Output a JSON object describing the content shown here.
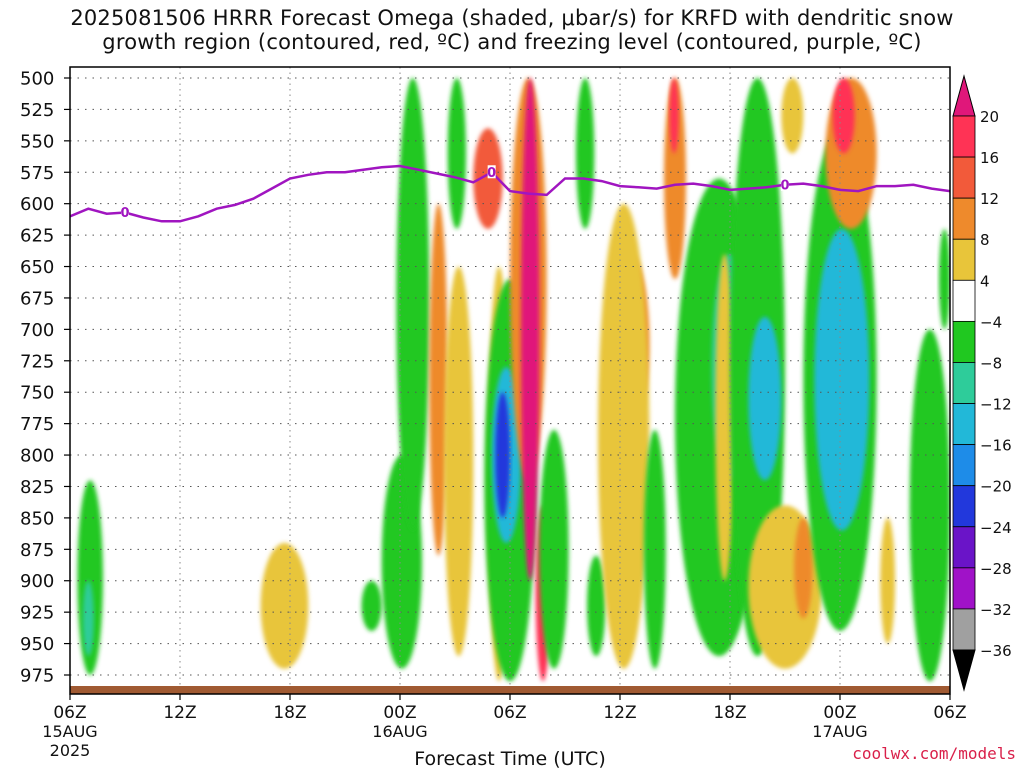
{
  "title": {
    "line1": "2025081506 HRRR Forecast Omega (shaded, μbar/s) for KRFD with dendritic snow",
    "line2": "growth region (contoured, red, ºC) and freezing level (contoured, purple, ºC)"
  },
  "credit": "coolwx.com/models",
  "chart_data": {
    "type": "heatmap",
    "xlabel": "Forecast Time (UTC)",
    "ylabel": "",
    "x_ticks": [
      {
        "hour": 0,
        "label": "06Z",
        "sub": "15AUG",
        "sub2": "2025"
      },
      {
        "hour": 6,
        "label": "12Z",
        "sub": "",
        "sub2": ""
      },
      {
        "hour": 12,
        "label": "18Z",
        "sub": "",
        "sub2": ""
      },
      {
        "hour": 18,
        "label": "00Z",
        "sub": "16AUG",
        "sub2": ""
      },
      {
        "hour": 24,
        "label": "06Z",
        "sub": "",
        "sub2": ""
      },
      {
        "hour": 30,
        "label": "12Z",
        "sub": "",
        "sub2": ""
      },
      {
        "hour": 36,
        "label": "18Z",
        "sub": "",
        "sub2": ""
      },
      {
        "hour": 42,
        "label": "00Z",
        "sub": "17AUG",
        "sub2": ""
      },
      {
        "hour": 48,
        "label": "06Z",
        "sub": "",
        "sub2": ""
      }
    ],
    "xlim": [
      0,
      48
    ],
    "y_ticks": [
      500,
      525,
      550,
      575,
      600,
      625,
      650,
      675,
      700,
      725,
      750,
      775,
      800,
      825,
      850,
      875,
      900,
      925,
      950,
      975
    ],
    "ylim": [
      500,
      988
    ],
    "colorbar": {
      "labels": [
        "20",
        "16",
        "12",
        "8",
        "4",
        "−4",
        "−8",
        "−12",
        "−16",
        "−20",
        "−24",
        "−28",
        "−32",
        "−36"
      ],
      "bins": [
        {
          "lo": 16,
          "hi": 20,
          "color": "#ff3355"
        },
        {
          "lo": 12,
          "hi": 16,
          "color": "#f25a3a"
        },
        {
          "lo": 8,
          "hi": 12,
          "color": "#ee8a2c"
        },
        {
          "lo": 4,
          "hi": 8,
          "color": "#e8c53a"
        },
        {
          "lo": -4,
          "hi": 4,
          "color": "#ffffff"
        },
        {
          "lo": -8,
          "hi": -4,
          "color": "#20c820"
        },
        {
          "lo": -12,
          "hi": -8,
          "color": "#2ecc9a"
        },
        {
          "lo": -16,
          "hi": -12,
          "color": "#22b8d8"
        },
        {
          "lo": -20,
          "hi": -16,
          "color": "#1e8ce8"
        },
        {
          "lo": -24,
          "hi": -20,
          "color": "#2238dc"
        },
        {
          "lo": -28,
          "hi": -24,
          "color": "#6a14c8"
        },
        {
          "lo": -32,
          "hi": -28,
          "color": "#a012c8"
        },
        {
          "lo": -36,
          "hi": -32,
          "color": "#a0a0a0"
        }
      ],
      "top_color": "#e0177a",
      "bottom_color": "#000000"
    },
    "freezing_level": {
      "label": "0",
      "color": "#a015c0",
      "points": [
        [
          0,
          610
        ],
        [
          1,
          604
        ],
        [
          2,
          608
        ],
        [
          3,
          607
        ],
        [
          4,
          611
        ],
        [
          5,
          614
        ],
        [
          6,
          614
        ],
        [
          7,
          610
        ],
        [
          8,
          604
        ],
        [
          9,
          601
        ],
        [
          10,
          596
        ],
        [
          11,
          588
        ],
        [
          12,
          580
        ],
        [
          13,
          577
        ],
        [
          14,
          575
        ],
        [
          15,
          575
        ],
        [
          16,
          573
        ],
        [
          17,
          571
        ],
        [
          18,
          570
        ],
        [
          19,
          573
        ],
        [
          20,
          576
        ],
        [
          21,
          579
        ],
        [
          22,
          583
        ],
        [
          23,
          575
        ],
        [
          24,
          590
        ],
        [
          25,
          592
        ],
        [
          26,
          593
        ],
        [
          27,
          580
        ],
        [
          28,
          580
        ],
        [
          29,
          582
        ],
        [
          30,
          586
        ],
        [
          31,
          587
        ],
        [
          32,
          588
        ],
        [
          33,
          585
        ],
        [
          34,
          584
        ],
        [
          35,
          586
        ],
        [
          36,
          589
        ],
        [
          37,
          588
        ],
        [
          38,
          587
        ],
        [
          39,
          585
        ],
        [
          40,
          584
        ],
        [
          41,
          586
        ],
        [
          42,
          589
        ],
        [
          43,
          590
        ],
        [
          44,
          586
        ],
        [
          45,
          586
        ],
        [
          46,
          585
        ],
        [
          47,
          588
        ],
        [
          48,
          590
        ]
      ],
      "label_hours": [
        3,
        23,
        39
      ]
    },
    "omega_fields": [
      {
        "value": 2,
        "x": [
          0.6,
          1.4
        ],
        "p": [
          640,
          700
        ]
      },
      {
        "value": 2,
        "x": [
          8.5,
          9.3
        ],
        "p": [
          820,
          880
        ]
      },
      {
        "value": 4,
        "x": [
          10.4,
          13.0
        ],
        "p": [
          870,
          970
        ]
      },
      {
        "value": 3,
        "x": [
          12.2,
          13.0
        ],
        "p": [
          720,
          870
        ]
      },
      {
        "value": 3,
        "x": [
          14.8,
          15.5
        ],
        "p": [
          510,
          575
        ]
      },
      {
        "value": 3,
        "x": [
          16.6,
          17.1
        ],
        "p": [
          500,
          540
        ]
      },
      {
        "value": -6,
        "x": [
          0.4,
          1.8
        ],
        "p": [
          820,
          975
        ]
      },
      {
        "value": -10,
        "x": [
          0.7,
          1.3
        ],
        "p": [
          900,
          960
        ]
      },
      {
        "value": -5,
        "x": [
          15.9,
          17.0
        ],
        "p": [
          900,
          940
        ]
      },
      {
        "value": -6,
        "x": [
          17.0,
          19.2
        ],
        "p": [
          800,
          970
        ]
      },
      {
        "value": -7,
        "x": [
          17.8,
          19.6
        ],
        "p": [
          500,
          860
        ]
      },
      {
        "value": 8,
        "x": [
          19.6,
          20.6
        ],
        "p": [
          600,
          880
        ]
      },
      {
        "value": 5,
        "x": [
          20.4,
          22.0
        ],
        "p": [
          650,
          960
        ]
      },
      {
        "value": -6,
        "x": [
          20.6,
          21.6
        ],
        "p": [
          500,
          620
        ]
      },
      {
        "value": 12,
        "x": [
          22.0,
          23.6
        ],
        "p": [
          540,
          620
        ]
      },
      {
        "value": 4,
        "x": [
          22.8,
          24.0
        ],
        "p": [
          650,
          980
        ]
      },
      {
        "value": -8,
        "x": [
          22.6,
          25.4
        ],
        "p": [
          660,
          980
        ]
      },
      {
        "value": -16,
        "x": [
          23.0,
          24.6
        ],
        "p": [
          730,
          870
        ]
      },
      {
        "value": -22,
        "x": [
          23.2,
          24.0
        ],
        "p": [
          750,
          850
        ]
      },
      {
        "value": 10,
        "x": [
          24.0,
          26.0
        ],
        "p": [
          500,
          820
        ]
      },
      {
        "value": 24,
        "x": [
          24.6,
          25.6
        ],
        "p": [
          500,
          900
        ]
      },
      {
        "value": 18,
        "x": [
          25.4,
          26.2
        ],
        "p": [
          840,
          980
        ]
      },
      {
        "value": -6,
        "x": [
          25.6,
          27.2
        ],
        "p": [
          780,
          970
        ]
      },
      {
        "value": -6,
        "x": [
          27.6,
          28.6
        ],
        "p": [
          500,
          620
        ]
      },
      {
        "value": -5,
        "x": [
          28.2,
          29.2
        ],
        "p": [
          880,
          960
        ]
      },
      {
        "value": 10,
        "x": [
          29.5,
          31.6
        ],
        "p": [
          640,
          780
        ]
      },
      {
        "value": 4,
        "x": [
          28.8,
          31.6
        ],
        "p": [
          600,
          970
        ]
      },
      {
        "value": -5,
        "x": [
          31.3,
          32.5
        ],
        "p": [
          780,
          970
        ]
      },
      {
        "value": 8,
        "x": [
          32.4,
          33.6
        ],
        "p": [
          500,
          660
        ]
      },
      {
        "value": 16,
        "x": [
          32.7,
          33.2
        ],
        "p": [
          500,
          560
        ]
      },
      {
        "value": 3,
        "x": [
          34.4,
          35.4
        ],
        "p": [
          500,
          570
        ]
      },
      {
        "value": -6,
        "x": [
          33.0,
          37.8
        ],
        "p": [
          580,
          960
        ]
      },
      {
        "value": -10,
        "x": [
          35.0,
          37.0
        ],
        "p": [
          640,
          820
        ]
      },
      {
        "value": 5,
        "x": [
          35.2,
          36.2
        ],
        "p": [
          640,
          900
        ]
      },
      {
        "value": -8,
        "x": [
          36.0,
          39.0
        ],
        "p": [
          500,
          960
        ]
      },
      {
        "value": -14,
        "x": [
          37.0,
          38.8
        ],
        "p": [
          690,
          820
        ]
      },
      {
        "value": 6,
        "x": [
          37.0,
          41.0
        ],
        "p": [
          840,
          970
        ]
      },
      {
        "value": 10,
        "x": [
          39.5,
          40.5
        ],
        "p": [
          850,
          930
        ]
      },
      {
        "value": 4,
        "x": [
          38.8,
          40.0
        ],
        "p": [
          500,
          560
        ]
      },
      {
        "value": -8,
        "x": [
          40.0,
          44.0
        ],
        "p": [
          540,
          940
        ]
      },
      {
        "value": -14,
        "x": [
          40.6,
          43.6
        ],
        "p": [
          620,
          860
        ]
      },
      {
        "value": 10,
        "x": [
          41.2,
          44.0
        ],
        "p": [
          500,
          620
        ]
      },
      {
        "value": 16,
        "x": [
          41.6,
          42.8
        ],
        "p": [
          500,
          560
        ]
      },
      {
        "value": 4,
        "x": [
          44.2,
          45.0
        ],
        "p": [
          850,
          950
        ]
      },
      {
        "value": 3,
        "x": [
          45.0,
          46.0
        ],
        "p": [
          500,
          540
        ]
      },
      {
        "value": -6,
        "x": [
          45.8,
          48.0
        ],
        "p": [
          700,
          980
        ]
      },
      {
        "value": -6,
        "x": [
          47.4,
          48.0
        ],
        "p": [
          620,
          700
        ]
      }
    ]
  }
}
